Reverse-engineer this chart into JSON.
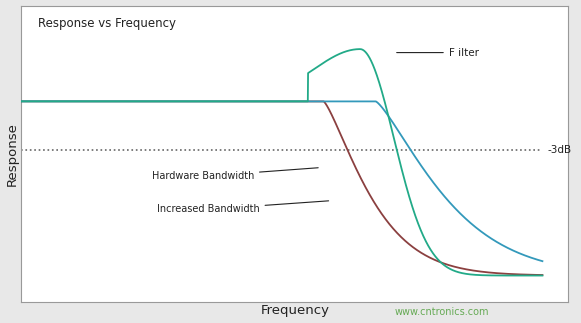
{
  "title": "Response vs Frequency",
  "xlabel": "Frequency",
  "ylabel": "Response",
  "background_color": "#e8e8e8",
  "plot_bg_color": "#ffffff",
  "minus3db_label": "-3dB",
  "filter_label": "F ilter",
  "hw_bw_label": "Hardware Bandwidth",
  "inc_bw_label": "Increased Bandwidth",
  "watermark": "www.cntronics.com",
  "watermark_color": "#66aa55",
  "hw_bw_color": "#8b4040",
  "inc_bw_color": "#3399bb",
  "filter_color": "#22aa88",
  "dotted_color": "#666666",
  "label_color": "#222222",
  "db3_level": 0.72,
  "flat_level": 1.0
}
